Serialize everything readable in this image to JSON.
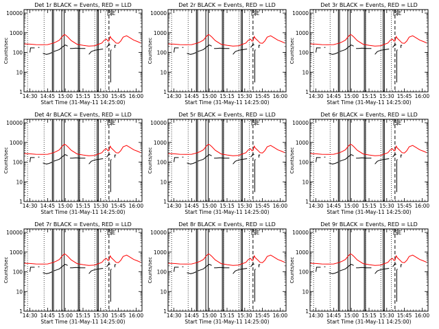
{
  "chart_data": [
    {
      "type": "line",
      "title": "Det 1r BLACK = Events, RED = LLD"
    },
    {
      "type": "line",
      "title": "Det 2r BLACK = Events, RED = LLD"
    },
    {
      "type": "line",
      "title": "Det 3r BLACK = Events, RED = LLD"
    },
    {
      "type": "line",
      "title": "Det 4r BLACK = Events, RED = LLD"
    },
    {
      "type": "line",
      "title": "Det 5r BLACK = Events, RED = LLD"
    },
    {
      "type": "line",
      "title": "Det 6r BLACK = Events, RED = LLD"
    },
    {
      "type": "line",
      "title": "Det 7r BLACK = Events, RED = LLD"
    },
    {
      "type": "line",
      "title": "Det 8r BLACK = Events, RED = LLD"
    },
    {
      "type": "line",
      "title": "Det 9r BLACK = Events, RED = LLD"
    }
  ],
  "common": {
    "xlabel": "Start Time (31-May-11 14:25:00)",
    "ylabel": "Counts/sec",
    "x_tick_labels": [
      "14:30",
      "14:45",
      "15:00",
      "15:15",
      "15:30",
      "15:45",
      "16:00"
    ],
    "x_ticks_min": [
      5,
      20,
      35,
      50,
      65,
      80,
      95
    ],
    "xlim_min": [
      0,
      100
    ],
    "y_tick_labels": [
      "1",
      "10",
      "100",
      "1000",
      "10000"
    ],
    "y_ticks": [
      1,
      10,
      100,
      1000,
      10000
    ],
    "ylim": [
      1,
      15000
    ],
    "ylog": true,
    "annotation_labels": [
      "S",
      "E"
    ],
    "annotation_x_min": [
      71,
      74
    ],
    "series": [
      {
        "name": "LLD",
        "color": "#ff0000",
        "x": [
          0,
          5,
          10,
          15,
          20,
          25,
          27,
          30,
          32,
          34,
          35,
          37,
          40,
          45,
          50,
          55,
          60,
          63,
          66,
          68,
          70,
          71,
          72,
          73,
          74,
          76,
          78,
          80,
          82,
          84,
          87,
          90,
          93,
          96,
          99
        ],
        "y": [
          270,
          265,
          250,
          245,
          250,
          300,
          340,
          420,
          600,
          800,
          780,
          620,
          400,
          260,
          230,
          210,
          220,
          260,
          300,
          420,
          480,
          380,
          380,
          650,
          520,
          400,
          300,
          290,
          380,
          600,
          700,
          550,
          420,
          360,
          300
        ]
      },
      {
        "name": "Events",
        "color": "#000000",
        "segments": [
          {
            "x": [
              5,
              5.5,
              9
            ],
            "y": [
              100,
              170,
              170
            ]
          },
          {
            "x": [
              12,
              13
            ],
            "y": [
              180,
              180
            ]
          },
          {
            "x": [
              16,
              19,
              21,
              24
            ],
            "y": [
              90,
              80,
              85,
              100
            ]
          },
          {
            "x": [
              25,
              30,
              33,
              35,
              37
            ],
            "y": [
              110,
              140,
              200,
              240,
              210
            ]
          },
          {
            "x": [
              39,
              41,
              44,
              48,
              52
            ],
            "y": [
              160,
              160,
              165,
              160,
              160
            ]
          },
          {
            "x": [
              55,
              57,
              60,
              64,
              67
            ],
            "y": [
              80,
              110,
              130,
              140,
              150
            ]
          },
          {
            "x": [
              70,
              71,
              72,
              73
            ],
            "y": [
              180,
              210,
              260,
              240
            ]
          },
          {
            "x": [
              73.5,
              73.5,
              74
            ],
            "y": [
              3,
              120,
              140
            ]
          },
          {
            "x": [
              77,
              77,
              78
            ],
            "y": [
              170,
              230,
              230
            ]
          }
        ]
      }
    ],
    "vlines_solid_min": [
      24,
      25,
      32,
      34,
      46,
      47,
      62,
      63
    ],
    "vlines_dotted_min": [
      3,
      17,
      47,
      60,
      69
    ],
    "vline_dashed_min": 72
  }
}
